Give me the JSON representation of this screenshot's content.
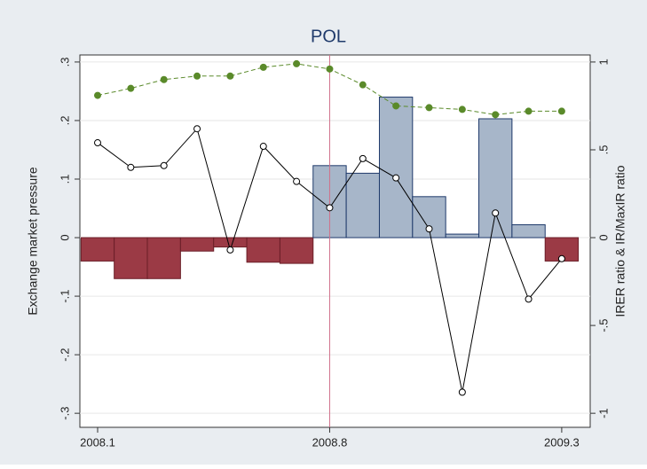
{
  "chart_data": {
    "type": "bar_line",
    "title": "POL",
    "y_label": "Exchange market pressure",
    "y2_label": "IRER ratio & IR/MaxIR ratio",
    "categories": [
      "2008.1",
      null,
      null,
      null,
      null,
      null,
      null,
      "2008.8",
      null,
      null,
      null,
      null,
      null,
      null,
      "2009.3"
    ],
    "ylim": [
      -0.324,
      0.312
    ],
    "yticks": [
      {
        "value": 0.3,
        "label": ".3"
      },
      {
        "value": 0.2,
        "label": ".2"
      },
      {
        "value": 0.1,
        "label": ".1"
      },
      0,
      {
        "value": -0.1,
        "label": "-.1"
      },
      {
        "value": -0.2,
        "label": "-.2"
      },
      {
        "value": -0.3,
        "label": "-.3"
      }
    ],
    "y2lim": [
      -1.08,
      1.04
    ],
    "y2ticks": [
      1,
      {
        "value": 0.5,
        "label": ".5"
      },
      0,
      {
        "value": -0.5,
        "label": "-.5"
      },
      -1
    ],
    "series": [
      {
        "kind": "bar",
        "positive_color": "#a7b6c9",
        "negative_color": "#9b3a45",
        "values": [
          -0.04,
          -0.07,
          -0.07,
          -0.023,
          -0.016,
          -0.042,
          -0.044,
          0.123,
          0.11,
          0.24,
          0.07,
          0.006,
          0.203,
          0.022,
          -0.04
        ]
      },
      {
        "kind": "line",
        "axis": "y2",
        "color": "#000000",
        "values": [
          0.54,
          0.4,
          0.41,
          0.62,
          -0.07,
          0.52,
          0.32,
          0.17,
          0.45,
          0.34,
          0.05,
          -0.88,
          0.14,
          -0.35,
          -0.12
        ]
      },
      {
        "kind": "line",
        "axis": "y2",
        "color": "#5a8a2a",
        "dashed": true,
        "values": [
          0.81,
          0.85,
          0.9,
          0.92,
          0.92,
          0.97,
          0.99,
          0.96,
          0.87,
          0.75,
          0.74,
          0.73,
          0.7,
          0.72,
          0.72
        ]
      }
    ]
  }
}
